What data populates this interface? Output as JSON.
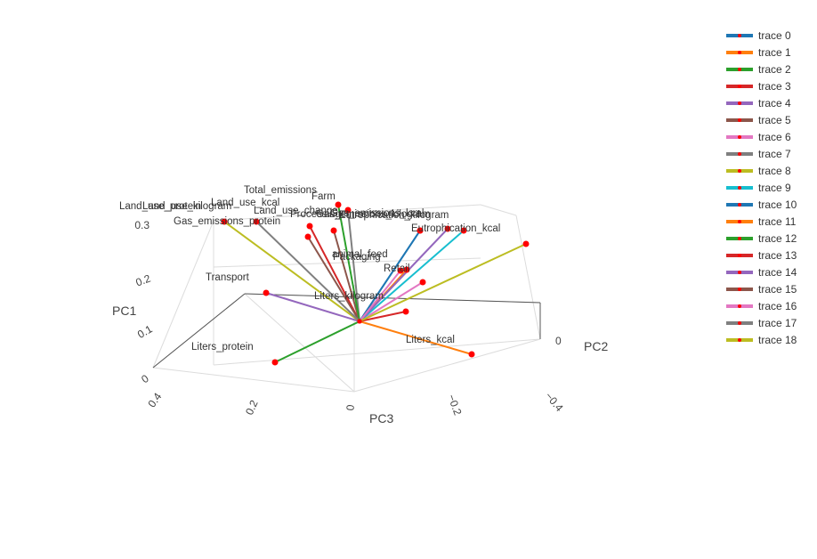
{
  "chart_data": {
    "type": "scatter3d",
    "axes": {
      "x": {
        "title": "PC2",
        "ticks": [
          "0",
          "−0.2",
          "−0.4"
        ],
        "tick_values": [
          0,
          -0.2,
          -0.4
        ]
      },
      "y": {
        "title": "PC3",
        "ticks": [
          "0.4",
          "0.2",
          "0",
          "−0.2",
          "−0.4"
        ],
        "tick_values": [
          0.4,
          0.2,
          0,
          -0.2,
          -0.4
        ]
      },
      "z": {
        "title": "PC1",
        "ticks": [
          "0",
          "0.1",
          "0.2",
          "0.3"
        ],
        "tick_values": [
          0,
          0.1,
          0.2,
          0.3
        ]
      }
    },
    "legend_position": "right",
    "marker_color": "#ff0000",
    "series": [
      {
        "name": "trace 0",
        "label": "Land_use_change",
        "color": "#1f77b4"
      },
      {
        "name": "trace 1",
        "label": "Liters_kcal",
        "color": "#ff7f0e"
      },
      {
        "name": "trace 2",
        "label": "Liters_protein",
        "color": "#2ca02c"
      },
      {
        "name": "trace 3",
        "label": "Processing",
        "color": "#d62728"
      },
      {
        "name": "trace 4",
        "label": "Transport",
        "color": "#9467bd"
      },
      {
        "name": "trace 5",
        "label": "Packaging",
        "color": "#8c564b"
      },
      {
        "name": "trace 6",
        "label": "Retail",
        "color": "#e377c2"
      },
      {
        "name": "trace 7",
        "label": "Total_emissions",
        "color": "#7f7f7f"
      },
      {
        "name": "trace 8",
        "label": "Land_use_protein",
        "color": "#bcbd22"
      },
      {
        "name": "trace 9",
        "label": "Eutrophication_kcal",
        "color": "#17becf"
      },
      {
        "name": "trace 10",
        "label": "Gas_emissions_kcal",
        "color": "#1f77b4"
      },
      {
        "name": "trace 11",
        "label": "animal_feed",
        "color": "#ff7f0e"
      },
      {
        "name": "trace 12",
        "label": "Farm",
        "color": "#2ca02c"
      },
      {
        "name": "trace 13",
        "label": "Liters_kilogram",
        "color": "#d62728"
      },
      {
        "name": "trace 14",
        "label": "Eutrophication_kilogram",
        "color": "#9467bd"
      },
      {
        "name": "trace 15",
        "label": "Land_use_kilogram",
        "color": "#8c564b"
      },
      {
        "name": "trace 16",
        "label": "Gas_emissions_kilogram",
        "color": "#e377c2"
      },
      {
        "name": "trace 17",
        "label": "Land_use_kcal",
        "color": "#7f7f7f"
      },
      {
        "name": "trace 18",
        "label": "Gas_emissions_protein",
        "color": "#bcbd22"
      }
    ]
  }
}
